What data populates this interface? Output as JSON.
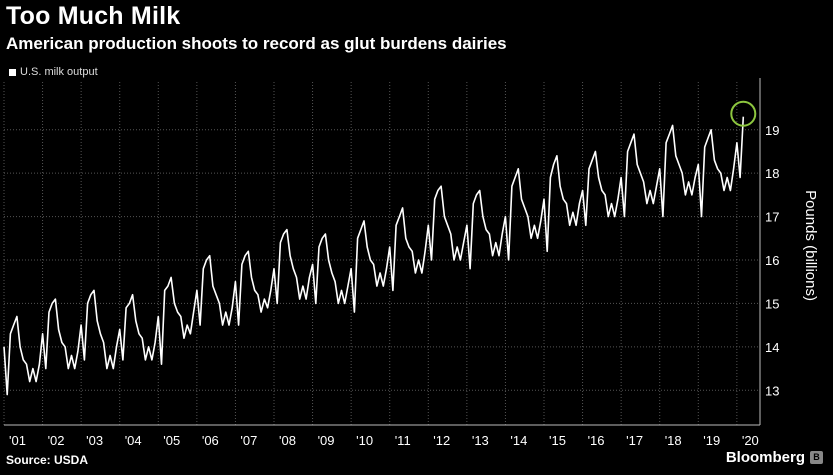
{
  "title": "Too Much Milk",
  "subtitle": "American production shoots to record as glut burdens dairies",
  "source": "Source: USDA",
  "brand": "Bloomberg",
  "colors": {
    "background": "#000000",
    "line": "#ffffff",
    "grid": "#555555",
    "highlight": "#8dc63f"
  },
  "chart_data": {
    "type": "line",
    "legend_position": "top-left",
    "grid": true,
    "ylabel": "Pounds (billions)",
    "ylim": [
      12.2,
      20.1
    ],
    "y_ticks": [
      13,
      14,
      15,
      16,
      17,
      18,
      19
    ],
    "x_range": [
      2001,
      2020.6
    ],
    "x_ticks": [
      {
        "x": 2001,
        "label": "'01"
      },
      {
        "x": 2002,
        "label": "'02"
      },
      {
        "x": 2003,
        "label": "'03"
      },
      {
        "x": 2004,
        "label": "'04"
      },
      {
        "x": 2005,
        "label": "'05"
      },
      {
        "x": 2006,
        "label": "'06"
      },
      {
        "x": 2007,
        "label": "'07"
      },
      {
        "x": 2008,
        "label": "'08"
      },
      {
        "x": 2009,
        "label": "'09"
      },
      {
        "x": 2010,
        "label": "'10"
      },
      {
        "x": 2011,
        "label": "'11"
      },
      {
        "x": 2012,
        "label": "'12"
      },
      {
        "x": 2013,
        "label": "'13"
      },
      {
        "x": 2014,
        "label": "'14"
      },
      {
        "x": 2015,
        "label": "'15"
      },
      {
        "x": 2016,
        "label": "'16"
      },
      {
        "x": 2017,
        "label": "'17"
      },
      {
        "x": 2018,
        "label": "'18"
      },
      {
        "x": 2019,
        "label": "'19"
      },
      {
        "x": 2020,
        "label": "'20"
      }
    ],
    "series": [
      {
        "name": "U.S. milk output",
        "start": "2001-01",
        "frequency": "monthly",
        "values": [
          14.0,
          12.9,
          14.3,
          14.5,
          14.7,
          14.0,
          13.7,
          13.6,
          13.2,
          13.5,
          13.2,
          13.6,
          14.3,
          13.5,
          14.8,
          15.0,
          15.1,
          14.4,
          14.1,
          14.0,
          13.5,
          13.8,
          13.5,
          13.9,
          14.5,
          13.7,
          15.0,
          15.2,
          15.3,
          14.6,
          14.3,
          14.1,
          13.5,
          13.8,
          13.5,
          14.0,
          14.4,
          13.7,
          14.9,
          15.0,
          15.2,
          14.6,
          14.3,
          14.2,
          13.7,
          14.0,
          13.7,
          14.1,
          14.7,
          13.6,
          15.3,
          15.4,
          15.6,
          15.0,
          14.8,
          14.7,
          14.2,
          14.5,
          14.3,
          14.8,
          15.3,
          14.5,
          15.8,
          16.0,
          16.1,
          15.4,
          15.2,
          15.0,
          14.5,
          14.8,
          14.5,
          14.9,
          15.5,
          14.5,
          15.9,
          16.1,
          16.2,
          15.6,
          15.3,
          15.2,
          14.8,
          15.1,
          14.9,
          15.3,
          15.8,
          15.0,
          16.4,
          16.6,
          16.7,
          16.1,
          15.8,
          15.6,
          15.1,
          15.4,
          15.1,
          15.6,
          15.9,
          15.0,
          16.3,
          16.5,
          16.6,
          16.0,
          15.7,
          15.5,
          15.0,
          15.3,
          15.0,
          15.4,
          15.8,
          14.8,
          16.5,
          16.7,
          16.9,
          16.3,
          16.0,
          15.9,
          15.4,
          15.7,
          15.4,
          15.8,
          16.3,
          15.3,
          16.8,
          17.0,
          17.2,
          16.5,
          16.3,
          16.2,
          15.7,
          16.0,
          15.7,
          16.2,
          16.8,
          16.0,
          17.4,
          17.6,
          17.7,
          17.0,
          16.8,
          16.6,
          16.0,
          16.3,
          16.0,
          16.4,
          16.8,
          15.8,
          17.3,
          17.5,
          17.6,
          17.0,
          16.7,
          16.6,
          16.1,
          16.4,
          16.1,
          16.6,
          17.0,
          16.0,
          17.7,
          17.9,
          18.1,
          17.4,
          17.2,
          17.0,
          16.5,
          16.8,
          16.5,
          16.9,
          17.4,
          16.2,
          17.9,
          18.2,
          18.4,
          17.7,
          17.4,
          17.3,
          16.8,
          17.1,
          16.8,
          17.3,
          17.6,
          16.8,
          18.1,
          18.3,
          18.5,
          17.9,
          17.6,
          17.5,
          17.0,
          17.3,
          17.0,
          17.4,
          17.9,
          17.0,
          18.5,
          18.7,
          18.9,
          18.2,
          18.0,
          17.8,
          17.3,
          17.6,
          17.3,
          17.7,
          18.1,
          17.0,
          18.7,
          18.9,
          19.1,
          18.4,
          18.2,
          18.0,
          17.5,
          17.8,
          17.5,
          17.9,
          18.2,
          17.0,
          18.6,
          18.8,
          19.0,
          18.3,
          18.1,
          18.0,
          17.6,
          17.9,
          17.6,
          18.1,
          18.7,
          17.9,
          19.3
        ]
      }
    ]
  }
}
